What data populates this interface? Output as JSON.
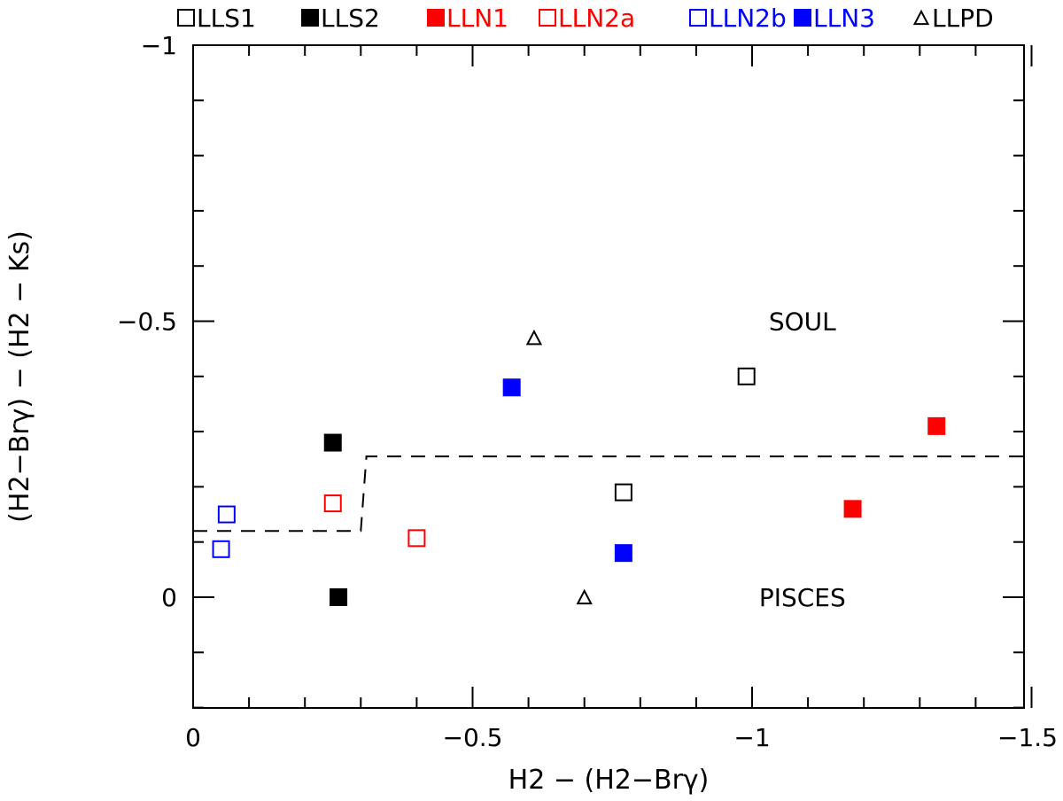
{
  "chart_data": {
    "type": "scatter",
    "xlabel": "H2 − (H2−Brγ)",
    "ylabel": "(H2−Brγ) − (H2 − Ks)",
    "xlim": [
      0,
      -1.5
    ],
    "ylim": [
      0.2,
      -1.0
    ],
    "x_ticks": [
      0,
      -0.5,
      -1,
      -1.5
    ],
    "x_tick_labels": [
      "0",
      "−0.5",
      "−1",
      "−1.5"
    ],
    "y_ticks": [
      0,
      -0.5,
      -1
    ],
    "y_tick_labels": [
      "0",
      "−0.5",
      "−1"
    ],
    "x_minor_step": 0.1,
    "y_minor_step": 0.1,
    "grid": false,
    "legend_position": "top",
    "series": [
      {
        "name": "LLS1",
        "marker": "square-open",
        "color": "#000000",
        "points": [
          [
            -0.99,
            -0.4
          ],
          [
            -0.77,
            -0.19
          ]
        ]
      },
      {
        "name": "LLS2",
        "marker": "square-filled",
        "color": "#000000",
        "points": [
          [
            -0.25,
            -0.28
          ],
          [
            -0.26,
            0.0
          ]
        ]
      },
      {
        "name": "LLN1",
        "marker": "square-filled",
        "color": "#ff0000",
        "points": [
          [
            -1.33,
            -0.31
          ],
          [
            -1.18,
            -0.16
          ]
        ]
      },
      {
        "name": "LLN2a",
        "marker": "square-open",
        "color": "#ff0000",
        "points": [
          [
            -0.25,
            -0.17
          ],
          [
            -0.4,
            -0.107
          ]
        ]
      },
      {
        "name": "LLN2b",
        "marker": "square-open",
        "color": "#0000ff",
        "points": [
          [
            -0.06,
            -0.15
          ],
          [
            -0.05,
            -0.087
          ]
        ]
      },
      {
        "name": "LLN3",
        "marker": "square-filled",
        "color": "#0000ff",
        "points": [
          [
            -0.57,
            -0.38
          ],
          [
            -0.77,
            -0.08
          ]
        ]
      },
      {
        "name": "LLPD",
        "marker": "triangle-open",
        "color": "#000000",
        "points": [
          [
            -0.61,
            -0.47
          ],
          [
            -0.7,
            0.0
          ]
        ]
      }
    ],
    "boundary_line": {
      "style": "dashed",
      "color": "#000000",
      "points": [
        [
          0.0,
          -0.12
        ],
        [
          -0.3,
          -0.12
        ],
        [
          -0.31,
          -0.255
        ],
        [
          -1.5,
          -0.255
        ]
      ]
    },
    "annotations": [
      {
        "text": "SOUL",
        "x": -1.09,
        "y": -0.5
      },
      {
        "text": "PISCES",
        "x": -1.09,
        "y": 0.0
      }
    ]
  }
}
